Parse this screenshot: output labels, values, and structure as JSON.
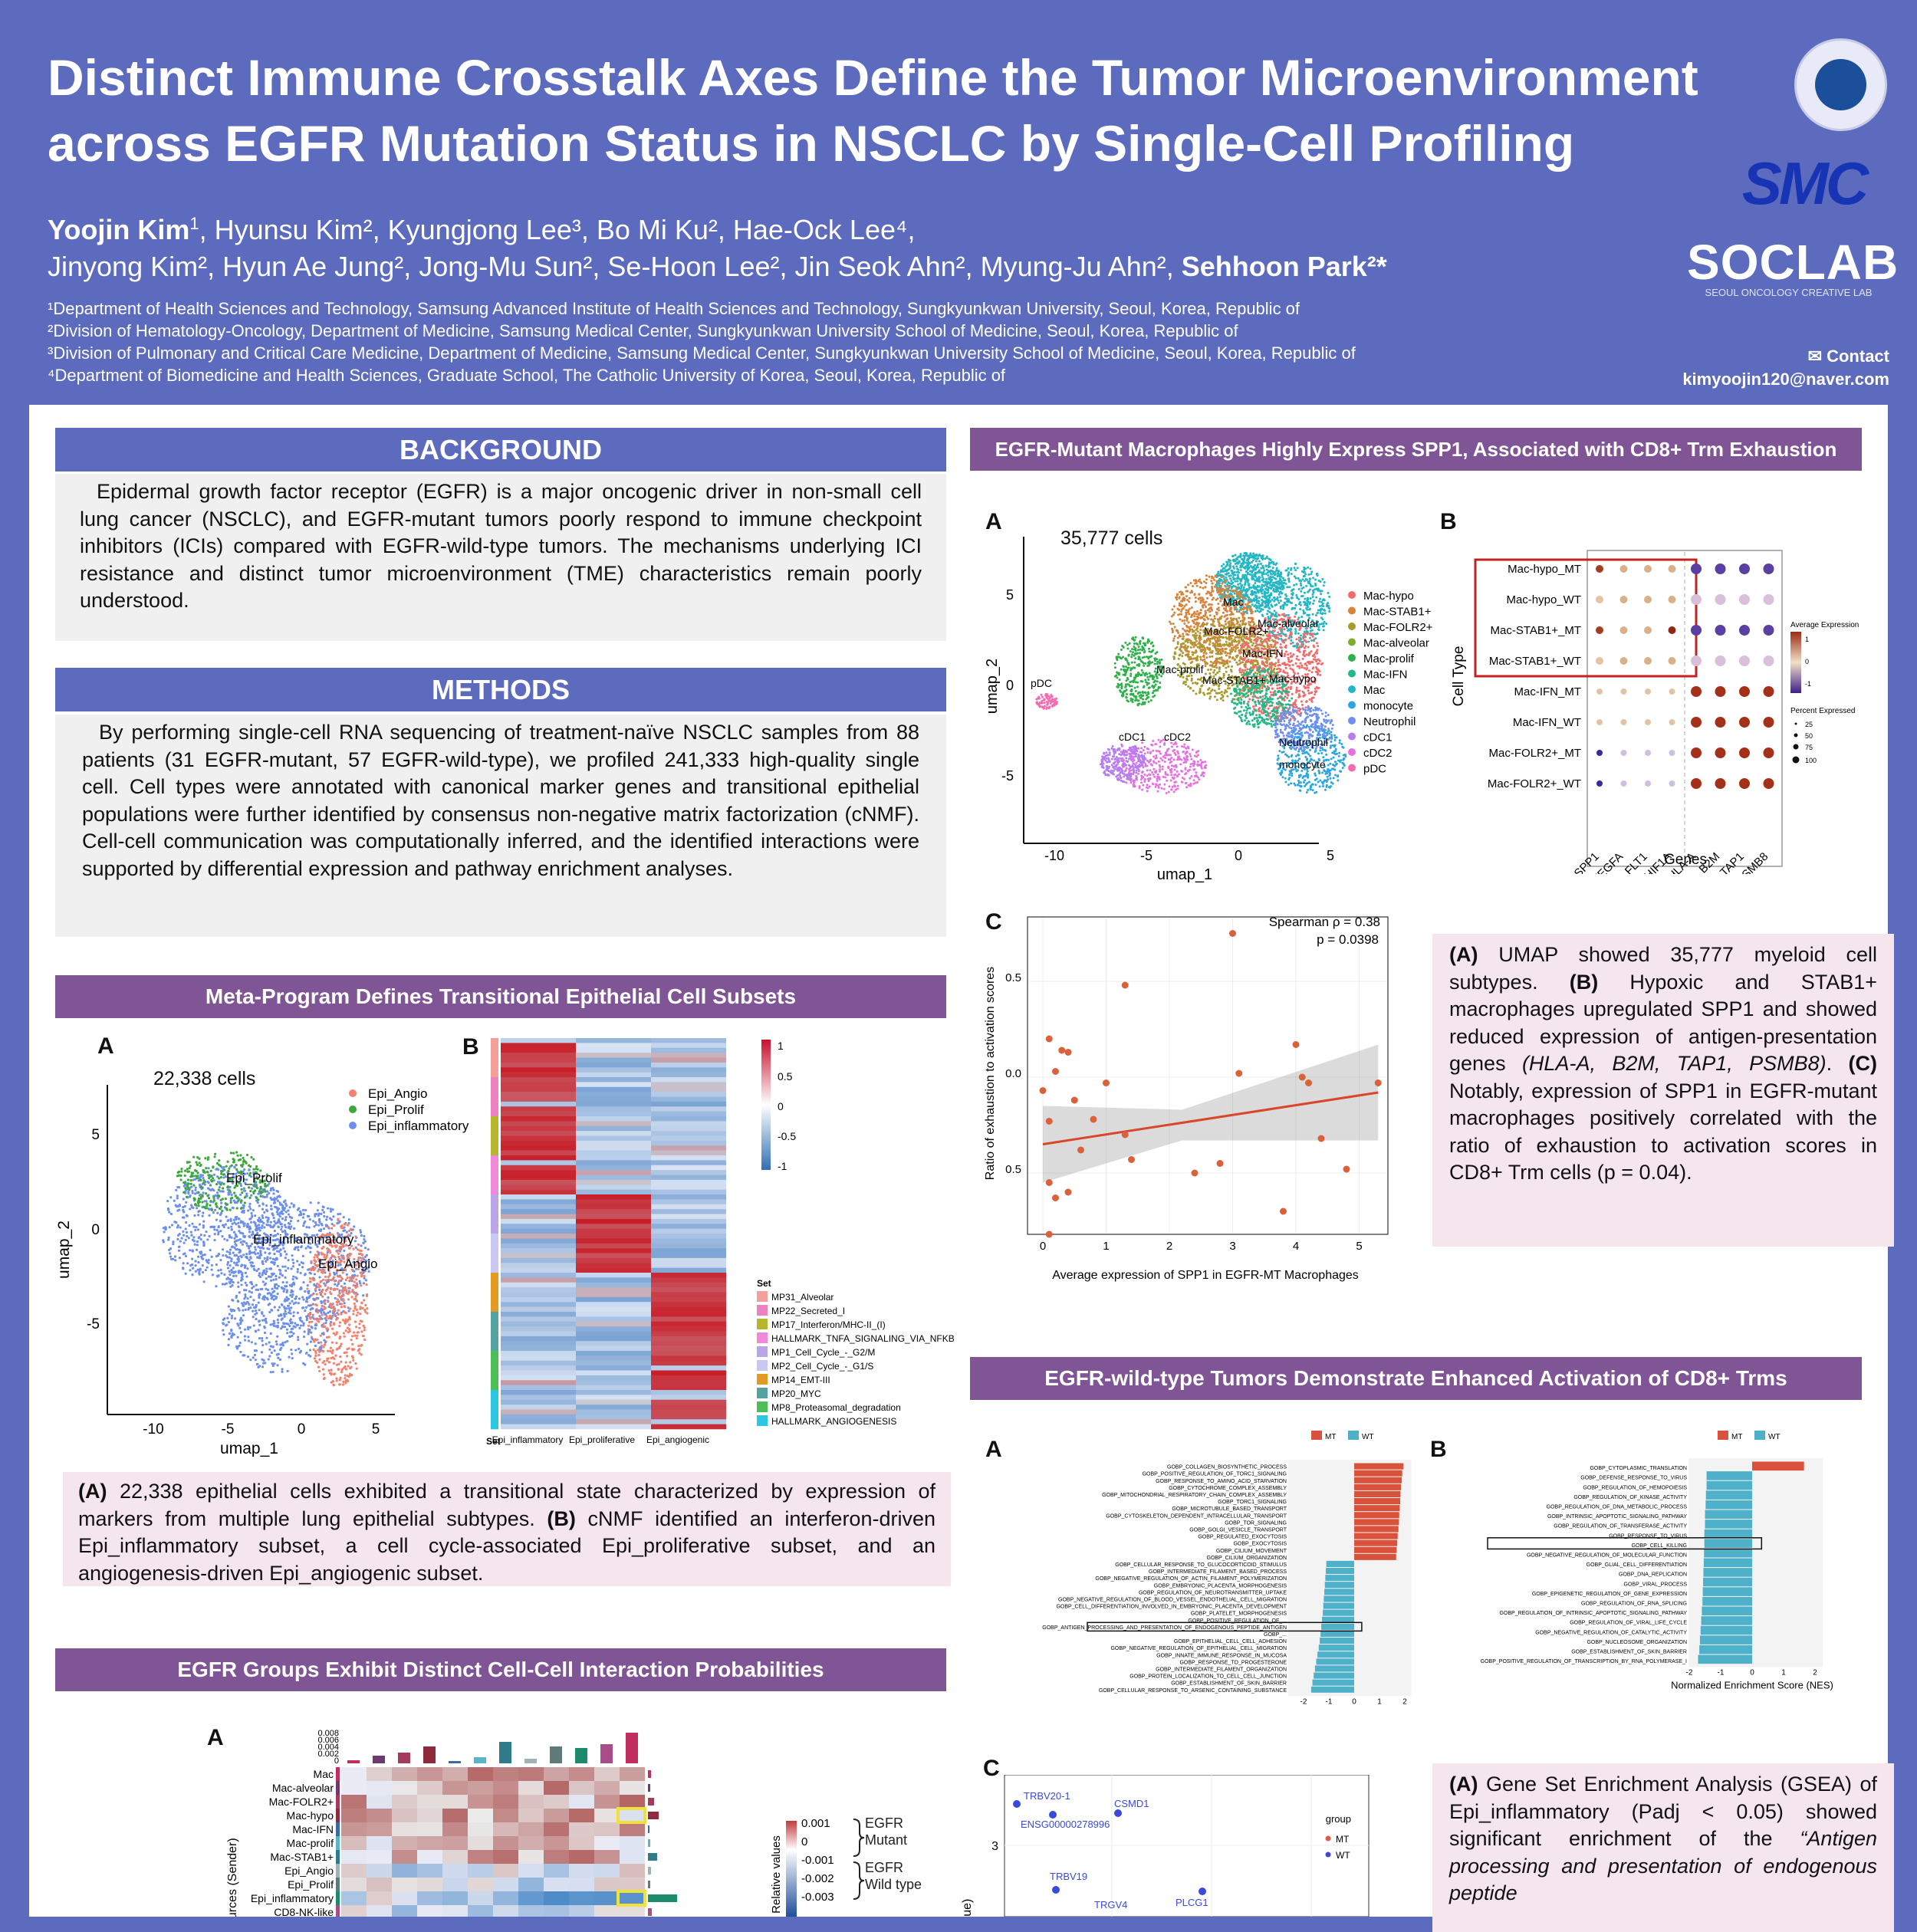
{
  "header": {
    "title_line1": "Distinct Immune Crosstalk Axes Define the Tumor Microenvironment",
    "title_line2": "across EGFR Mutation Status in NSCLC by Single-Cell Profiling",
    "authors_line1_first": "Yoojin Kim",
    "authors_line1_rest": ", Hyunsu Kim², Kyungjong Lee³, Bo Mi Ku², Hae-Ock Lee⁴,",
    "authors_line2": "Jinyong Kim², Hyun Ae Jung², Jong-Mu Sun², Se-Hoon Lee², Jin Seok Ahn², Myung-Ju Ahn², ",
    "authors_last": "Sehhoon Park²*",
    "affiliations": [
      "¹Department of Health Sciences and Technology, Samsung Advanced Institute of Health Sciences and Technology, Sungkyunkwan University, Seoul, Korea, Republic of",
      "²Division of Hematology-Oncology, Department of Medicine, Samsung Medical Center, Sungkyunkwan University School of Medicine, Seoul, Korea, Republic of",
      "³Division of Pulmonary and Critical Care Medicine, Department of Medicine, Samsung Medical Center, Sungkyunkwan University School of Medicine, Seoul, Korea, Republic of",
      "⁴Department of Biomedicine and Health Sciences, Graduate School, The Catholic University of Korea, Seoul, Korea, Republic of"
    ],
    "contact_label": "✉ Contact",
    "contact_email": "kimyoojin120@naver.com",
    "logo_smc": "SMC",
    "logo_soclab": "SOCLAB",
    "logo_soclab_sub": "SEOUL ONCOLOGY CREATIVE LAB"
  },
  "background": {
    "heading": "BACKGROUND",
    "text": "Epidermal growth factor receptor (EGFR) is a major oncogenic driver in non-small cell lung cancer (NSCLC), and EGFR-mutant tumors poorly respond to immune checkpoint inhibitors (ICIs) compared with EGFR-wild-type tumors. The mechanisms underlying ICI resistance and distinct tumor microenvironment (TME) characteristics remain poorly understood."
  },
  "methods": {
    "heading": "METHODS",
    "text": "By performing single-cell RNA sequencing of treatment-naïve NSCLC samples from 88 patients (31 EGFR-mutant, 57 EGFR-wild-type), we profiled 241,333 high-quality single cell. Cell types were annotated with canonical marker genes and transitional epithelial populations were further identified by consensus non-negative matrix factorization (cNMF). Cell-cell communication was computationally inferred, and the identified interactions were supported by differential expression and pathway enrichment analyses."
  },
  "meta_program": {
    "heading": "Meta-Program Defines Transitional Epithelial Cell Subsets",
    "fig_a": "A",
    "fig_b": "B",
    "cells_label": "22,338 cells",
    "legend": [
      "Epi_Angio",
      "Epi_Prolif",
      "Epi_inflammatory"
    ],
    "cluster_labels": [
      "Epi_Prolif",
      "Epi_inflammatory",
      "Epi_Angio"
    ],
    "xlabel": "umap_1",
    "ylabel": "umap_2",
    "xticks": [
      "-10",
      "-5",
      "0",
      "5"
    ],
    "yticks": [
      "5",
      "0",
      "-5"
    ],
    "heat_cols": [
      "Epi_inflammatory",
      "Epi_proliferative",
      "Epi_angiogenic"
    ],
    "heat_set_label": "Set",
    "heat_scale": [
      "1",
      "0.5",
      "0",
      "-0.5",
      "-1"
    ],
    "set_legend_title": "Set",
    "set_legend": [
      "MP31_Alveolar",
      "MP22_Secreted_I",
      "MP17_Interferon/MHC-II_(I)",
      "HALLMARK_TNFA_SIGNALING_VIA_NFKB",
      "MP1_Cell_Cycle_-_G2/M",
      "MP2_Cell_Cycle_-_G1/S",
      "MP14_EMT-III",
      "MP20_MYC",
      "MP8_Proteasomal_degradation",
      "HALLMARK_ANGIOGENESIS"
    ],
    "set_colors": [
      "#f4a09a",
      "#ee82c0",
      "#b5b52e",
      "#f08ad8",
      "#b9a6e8",
      "#c8c8f0",
      "#e39a21",
      "#55a3a0",
      "#4bbf56",
      "#2dc6e0"
    ],
    "caption_a": "(A)",
    "caption_a_text": " 22,338 epithelial cells exhibited a transitional state characterized by expression of markers from multiple lung epithelial subtypes. ",
    "caption_b": "(B)",
    "caption_b_text": " cNMF identified an interferon-driven Epi_inflammatory subset, a cell cycle-associated Epi_proliferative subset, and an angiogenesis-driven Epi_angiogenic subset."
  },
  "egfr_groups": {
    "heading": "EGFR Groups Exhibit Distinct Cell-Cell Interaction Probabilities",
    "fig_a": "A",
    "bar_ticks": [
      "0.008",
      "0.006",
      "0.004",
      "0.002",
      "0"
    ],
    "rows": [
      "Mac",
      "Mac-alveolar",
      "Mac-FOLR2+",
      "Mac-hypo",
      "Mac-IFN",
      "Mac-prolif",
      "Mac-STAB1+",
      "Epi_Angio",
      "Epi_Prolif",
      "Epi_inflammatory",
      "CD8-NK-like"
    ],
    "ylabel": "Sources (Sender)",
    "scale_label": "Relative values",
    "scale": [
      "0.001",
      "0",
      "-0.001",
      "-0.002",
      "-0.003"
    ],
    "group_mt": "EGFR Mutant",
    "group_wt": "EGFR Wild type"
  },
  "spp1": {
    "heading": "EGFR-Mutant Macrophages Highly Express SPP1, Associated with CD8+ Trm Exhaustion",
    "fig_a": "A",
    "fig_b": "B",
    "fig_c": "C",
    "cells_label": "35,777 cells",
    "legend": [
      "Mac-hypo",
      "Mac-STAB1+",
      "Mac-FOLR2+",
      "Mac-alveolar",
      "Mac-prolif",
      "Mac-IFN",
      "Mac",
      "monocyte",
      "Neutrophil",
      "cDC1",
      "cDC2",
      "pDC"
    ],
    "legend_colors": [
      "#f26b6b",
      "#d9823b",
      "#a89a2c",
      "#7fae2c",
      "#2fb04a",
      "#23b889",
      "#23b7c4",
      "#2aa6e2",
      "#6f8ff0",
      "#b67ef0",
      "#e573df",
      "#f56bb0"
    ],
    "cluster_labels": [
      "Mac",
      "Mac-alveolar",
      "Mac-FOLR2+",
      "Mac-IFN",
      "Mac-prolif",
      "Mac-STAB1+",
      "Mac-hypo",
      "pDC",
      "cDC1",
      "cDC2",
      "Neutrophil",
      "monocyte"
    ],
    "xlabel": "umap_1",
    "ylabel": "umap_2",
    "xticks": [
      "-10",
      "-5",
      "0",
      "5"
    ],
    "yticks": [
      "5",
      "0",
      "-5"
    ],
    "dot_rows": [
      "Mac-hypo_MT",
      "Mac-hypo_WT",
      "Mac-STAB1+_MT",
      "Mac-STAB1+_WT",
      "Mac-IFN_MT",
      "Mac-IFN_WT",
      "Mac-FOLR2+_MT",
      "Mac-FOLR2+_WT"
    ],
    "dot_cols": [
      "SPP1",
      "VEGFA",
      "FLT1",
      "HIF1A",
      "HLA-A",
      "B2M",
      "TAP1",
      "PSMB8"
    ],
    "dot_ylabel": "Cell Type",
    "dot_xlabel": "Genes",
    "avg_expr_title": "Average Expression",
    "avg_expr_ticks": [
      "1",
      "0",
      "-1"
    ],
    "pct_title": "Percent Expressed",
    "pct_ticks": [
      "25",
      "50",
      "75",
      "100"
    ],
    "scatter_stat1": "Spearman ρ = 0.38",
    "scatter_stat2": "p = 0.0398",
    "scatter_xlabel": "Average expression of SPP1 in EGFR-MT Macrophages",
    "scatter_ylabel": "Ratio of exhaustion to activation scores",
    "scatter_xticks": [
      "0",
      "1",
      "2",
      "3",
      "4",
      "5"
    ],
    "scatter_yticks": [
      "0.5",
      "0.0",
      "0.5"
    ],
    "cap_a": "(A)",
    "cap_a_text": " UMAP showed 35,777 myeloid cell subtypes. ",
    "cap_b": "(B)",
    "cap_b_text": " Hypoxic and STAB1+ macrophages upregulated SPP1 and showed reduced expression of antigen-presentation genes ",
    "cap_b_genes": "(HLA-A, B2M, TAP1, PSMB8)",
    "cap_b_end": ". ",
    "cap_c": "(C)",
    "cap_c_text": " Notably, expression of SPP1 in EGFR-mutant macrophages positively correlated with the ratio of exhaustion to activation scores in CD8+ Trm cells (p = 0.04)."
  },
  "chart_data": [
    {
      "type": "scatter",
      "x": [
        3.0,
        1.3,
        0.1,
        0.3,
        0.4,
        0.2,
        0.0,
        0.1,
        0.5,
        1.0,
        0.8,
        1.4,
        0.6,
        0.1,
        0.4,
        2.4,
        2.8,
        3.1,
        4.1,
        4.0,
        4.2,
        4.4,
        5.3,
        4.8,
        3.8,
        0.2,
        0.1,
        1.3
      ],
      "y": [
        0.75,
        0.48,
        0.2,
        0.14,
        0.13,
        0.03,
        -0.07,
        -0.23,
        -0.12,
        -0.03,
        -0.22,
        -0.43,
        -0.38,
        -0.55,
        -0.6,
        -0.5,
        -0.45,
        0.02,
        0.0,
        0.17,
        -0.03,
        -0.32,
        -0.03,
        -0.48,
        -0.7,
        -0.63,
        -0.82,
        -0.3
      ],
      "xlabel": "Average expression of SPP1 in EGFR-MT Macrophages",
      "ylabel": "Ratio of exhaustion to activation scores",
      "trend": {
        "x": [
          0.0,
          5.3
        ],
        "y": [
          -0.35,
          -0.08
        ]
      }
    },
    {
      "type": "bar",
      "title": "",
      "legend": [
        "MT",
        "WT"
      ],
      "legend_colors": [
        "#d9523b",
        "#4fb0c9"
      ],
      "categories": [
        "GOBP_COLLAGEN_BIOSYNTHETIC_PROCESS",
        "GOBP_POSITIVE_REGULATION_OF_TORC1_SIGNALING",
        "GOBP_RESPONSE_TO_AMINO_ACID_STARVATION",
        "GOBP_CYTOCHROME_COMPLEX_ASSEMBLY",
        "GOBP_MITOCHONDRIAL_RESPIRATORY_CHAIN_COMPLEX_ASSEMBLY",
        "GOBP_TORC1_SIGNALING",
        "GOBP_MICROTUBULE_BASED_TRANSPORT",
        "GOBP_CYTOSKELETON_DEPENDENT_INTRACELLULAR_TRANSPORT",
        "GOBP_TOR_SIGNALING",
        "GOBP_GOLGI_VESICLE_TRANSPORT",
        "GOBP_REGULATED_EXOCYTOSIS",
        "GOBP_EXOCYTOSIS",
        "GOBP_CILIUM_MOVEMENT",
        "GOBP_CILIUM_ORGANIZATION",
        "GOBP_CELLULAR_RESPONSE_TO_GLUCOCORTICOID_STIMULUS",
        "GOBP_INTERMEDIATE_FILAMENT_BASED_PROCESS",
        "GOBP_NEGATIVE_REGULATION_OF_ACTIN_FILAMENT_POLYMERIZATION",
        "GOBP_EMBRYONIC_PLACENTA_MORPHOGENESIS",
        "GOBP_REGULATION_OF_NEUROTRANSMITTER_UPTAKE",
        "GOBP_NEGATIVE_REGULATION_OF_BLOOD_VESSEL_ENDOTHELIAL_CELL_MIGRATION",
        "GOBP_CELL_DIFFERENTIATION_INVOLVED_IN_EMBRYONIC_PLACENTA_DEVELOPMENT",
        "GOBP_PLATELET_MORPHOGENESIS",
        "GOBP_POSITIVE_REGULATION_OF_...",
        "GOBP_ANTIGEN_PROCESSING_AND_PRESENTATION_OF_ENDOGENOUS_PEPTIDE_ANTIGEN",
        "GOBP_...",
        "GOBP_EPITHELIAL_CELL_CELL_ADHESION",
        "GOBP_NEGATIVE_REGULATION_OF_EPITHELIAL_CELL_MIGRATION",
        "GOBP_INNATE_IMMUNE_RESPONSE_IN_MUCOSA",
        "GOBP_RESPONSE_TO_PROGESTERONE",
        "GOBP_INTERMEDIATE_FILAMENT_ORGANIZATION",
        "GOBP_PROTEIN_LOCALIZATION_TO_CELL_CELL_JUNCTION",
        "GOBP_ESTABLISHMENT_OF_SKIN_BARRIER",
        "GOBP_CELLULAR_RESPONSE_TO_ARSENIC_CONTAINING_SUBSTANCE"
      ],
      "values": [
        1.95,
        1.9,
        1.88,
        1.85,
        1.83,
        1.82,
        1.8,
        1.78,
        1.77,
        1.75,
        1.72,
        1.7,
        1.68,
        1.66,
        -1.1,
        -1.12,
        -1.14,
        -1.16,
        -1.18,
        -1.2,
        -1.22,
        -1.24,
        -1.27,
        -1.3,
        -1.33,
        -1.36,
        -1.4,
        -1.45,
        -1.5,
        -1.55,
        -1.6,
        -1.65,
        -1.7
      ],
      "xlabel": "Normalized Enrichment Score (NES)",
      "xticks": [
        "-2",
        "-1",
        "0",
        "1",
        "2"
      ],
      "xlim": [
        -2.6,
        2.1
      ]
    },
    {
      "type": "bar",
      "legend": [
        "MT",
        "WT"
      ],
      "categories": [
        "GOBP_CYTOPLASMIC_TRANSLATION",
        "GOBP_DEFENSE_RESPONSE_TO_VIRUS",
        "GOBP_REGULATION_OF_HEMOPOIESIS",
        "GOBP_REGULATION_OF_KINASE_ACTIVITY",
        "GOBP_REGULATION_OF_DNA_METABOLIC_PROCESS",
        "GOBP_INTRINSIC_APOPTOTIC_SIGNALING_PATHWAY",
        "GOBP_REGULATION_OF_TRANSFERASE_ACTIVITY",
        "GOBP_RESPONSE_TO_VIRUS",
        "GOBP_CELL_KILLING",
        "GOBP_NEGATIVE_REGULATION_OF_MOLECULAR_FUNCTION",
        "GOBP_GLIAL_CELL_DIFFERENTIATION",
        "GOBP_DNA_REPLICATION",
        "GOBP_VIRAL_PROCESS",
        "GOBP_EPIGENETIC_REGULATION_OF_GENE_EXPRESSION",
        "GOBP_REGULATION_OF_RNA_SPLICING",
        "GOBP_REGULATION_OF_INTRINSIC_APOPTOTIC_SIGNALING_PATHWAY",
        "GOBP_REGULATION_OF_VIRAL_LIFE_CYCLE",
        "GOBP_NEGATIVE_REGULATION_OF_CATALYTIC_ACTIVITY",
        "GOBP_NUCLEOSOME_ORGANIZATION",
        "GOBP_ESTABLISHMENT_OF_SKIN_BARRIER",
        "GOBP_POSITIVE_REGULATION_OF_TRANSCRIPTION_BY_RNA_POLYMERASE_I"
      ],
      "values": [
        1.65,
        -1.45,
        -1.45,
        -1.47,
        -1.48,
        -1.5,
        -1.5,
        -1.52,
        -1.52,
        -1.53,
        -1.54,
        -1.55,
        -1.56,
        -1.57,
        -1.58,
        -1.6,
        -1.62,
        -1.64,
        -1.66,
        -1.68,
        -1.72
      ],
      "xlabel": "Normalized Enrichment Score (NES)",
      "xticks": [
        "-2",
        "-1",
        "0",
        "1",
        "2"
      ],
      "xlim": [
        -2.2,
        2.2
      ]
    }
  ],
  "wt_trm": {
    "heading": "EGFR-wild-type Tumors Demonstrate Enhanced Activation of CD8+ Trms",
    "fig_a": "A",
    "fig_b": "B",
    "fig_c": "C",
    "legend_mt": "MT",
    "legend_wt": "WT",
    "volcano_group": "group",
    "volcano_genes": [
      "TRBV20-1",
      "CSMD1",
      "ENSG00000278996",
      "TRBV19",
      "TRGV4",
      "PLCG1"
    ],
    "volcano_ytick": "3",
    "volcano_ylabel": "lue)",
    "cap_a": "(A)",
    "cap_a_text": " Gene Set Enrichment Analysis (GSEA) of Epi_inflammatory (Padj < 0.05) showed  significant enrichment of the ",
    "cap_a_italic": "“Antigen processing and presentation of endogenous peptide"
  }
}
